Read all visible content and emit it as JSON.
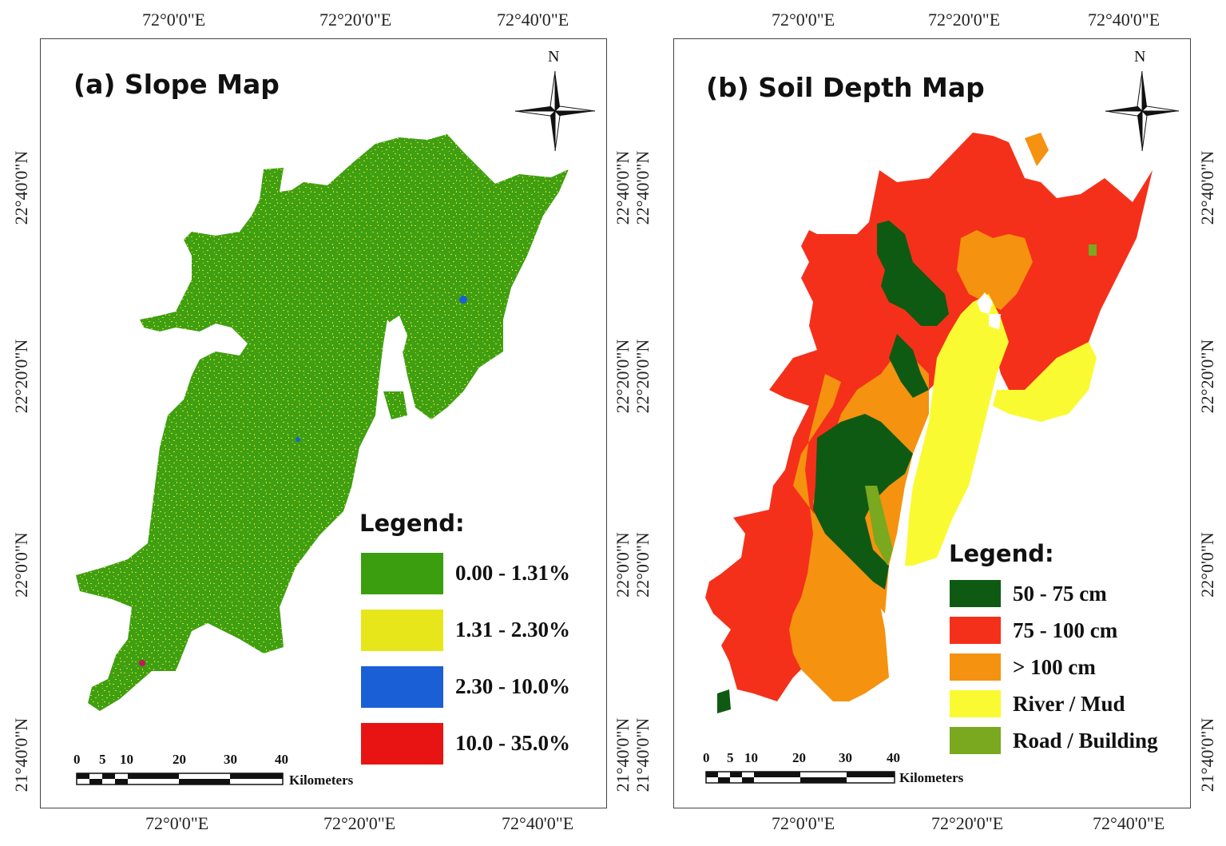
{
  "panels": [
    {
      "title": "(a)  Slope Map",
      "top_ticks": [
        "72°0'0\"E",
        "72°20'0\"E",
        "72°40'0\"E"
      ],
      "bottom_ticks": [
        "72°0'0\"E",
        "72°20'0\"E",
        "72°40'0\"E"
      ],
      "left_ticks": [
        "22°40'0\"N",
        "22°20'0\"N",
        "22°0'0\"N",
        "21°40'0\"N"
      ],
      "right_ticks": [
        "22°40'0\"N",
        "22°20'0\"N",
        "22°0'0\"N",
        "21°40'0\"N"
      ],
      "north": "N",
      "legend": {
        "title": "Legend:",
        "items": [
          {
            "label": "0.00 - 1.31%",
            "color": "#3a9e0f"
          },
          {
            "label": "1.31 - 2.30%",
            "color": "#e6e61a"
          },
          {
            "label": "2.30 - 10.0%",
            "color": "#1a5fd6"
          },
          {
            "label": "10.0 - 35.0%",
            "color": "#e81414"
          }
        ]
      },
      "scale": {
        "numbers": [
          "0",
          "5",
          "10",
          "20",
          "30",
          "40"
        ],
        "unit": "Kilometers"
      }
    },
    {
      "title": "(b) Soil Depth Map",
      "top_ticks": [
        "72°0'0\"E",
        "72°20'0\"E",
        "72°40'0\"E"
      ],
      "bottom_ticks": [
        "72°0'0\"E",
        "72°20'0\"E",
        "72°40'0\"E"
      ],
      "left_ticks": [
        "22°40'0\"N",
        "22°20'0\"N",
        "22°0'0\"N",
        "21°40'0\"N"
      ],
      "right_ticks": [
        "22°40'0\"N",
        "22°20'0\"N",
        "22°0'0\"N",
        "21°40'0\"N"
      ],
      "north": "N",
      "legend": {
        "title": "Legend:",
        "items": [
          {
            "label": "50 - 75 cm",
            "color": "#0f5a12"
          },
          {
            "label": "75 - 100 cm",
            "color": "#f5301a"
          },
          {
            "label": "> 100 cm",
            "color": "#f5920f"
          },
          {
            "label": "River / Mud",
            "color": "#fafa32"
          },
          {
            "label": "Road / Building",
            "color": "#7aa81e"
          }
        ]
      },
      "scale": {
        "numbers": [
          "0",
          "5",
          "10",
          "20",
          "30",
          "40"
        ],
        "unit": "Kilometers"
      }
    }
  ]
}
